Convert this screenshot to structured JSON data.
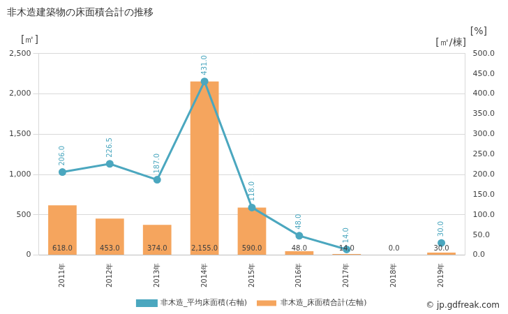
{
  "chart_data": {
    "type": "bar",
    "title": "非木造建築物の床面積合計の推移",
    "ylabel": "[㎡]",
    "y2label": [
      "[%]",
      "[㎡/棟]"
    ],
    "source": "© jp.gdfreak.com",
    "categories": [
      "2011年",
      "2012年",
      "2013年",
      "2014年",
      "2015年",
      "2016年",
      "2017年",
      "2018年",
      "2019年"
    ],
    "series": [
      {
        "name": "非木造_床面積合計(左軸)",
        "type": "bar",
        "color": "#f5a55e",
        "values": [
          618,
          453,
          374,
          2155,
          590,
          48,
          14,
          0,
          30
        ],
        "value_labels": [
          "618.0",
          "453.0",
          "374.0",
          "2,155.0",
          "590.0",
          "48.0",
          "14.0",
          "0.0",
          "30.0"
        ]
      },
      {
        "name": "非木造_平均床面積(右軸)",
        "type": "line",
        "axis": "y2",
        "color": "#4ba7bf",
        "marker": "circle",
        "values": [
          206,
          226.5,
          187,
          431,
          118,
          48,
          14,
          null,
          30
        ],
        "value_labels": [
          "206.0",
          "226.5",
          "187.0",
          "431.0",
          "118.0",
          "48.0",
          "14.0",
          null,
          "30.0"
        ]
      }
    ],
    "ylim": [
      0,
      2500
    ],
    "yticks": [
      0,
      500,
      {
        "value": 1000,
        "label": "1,000"
      },
      {
        "value": 1500,
        "label": "1,500"
      },
      {
        "value": 2000,
        "label": "2,000"
      },
      {
        "value": 2500,
        "label": "2,500"
      }
    ],
    "y2lim": [
      0,
      500
    ],
    "y2ticks": [
      {
        "value": 0,
        "label": "0.0"
      },
      {
        "value": 50,
        "label": "50.0"
      },
      {
        "value": 100,
        "label": "100.0"
      },
      {
        "value": 150,
        "label": "150.0"
      },
      {
        "value": 200,
        "label": "200.0"
      },
      {
        "value": 250,
        "label": "250.0"
      },
      {
        "value": 300,
        "label": "300.0"
      },
      {
        "value": 350,
        "label": "350.0"
      },
      {
        "value": 400,
        "label": "400.0"
      },
      {
        "value": 450,
        "label": "450.0"
      },
      {
        "value": 500,
        "label": "500.0"
      }
    ],
    "grid": true,
    "legend": "bottom",
    "data_labels": true
  }
}
